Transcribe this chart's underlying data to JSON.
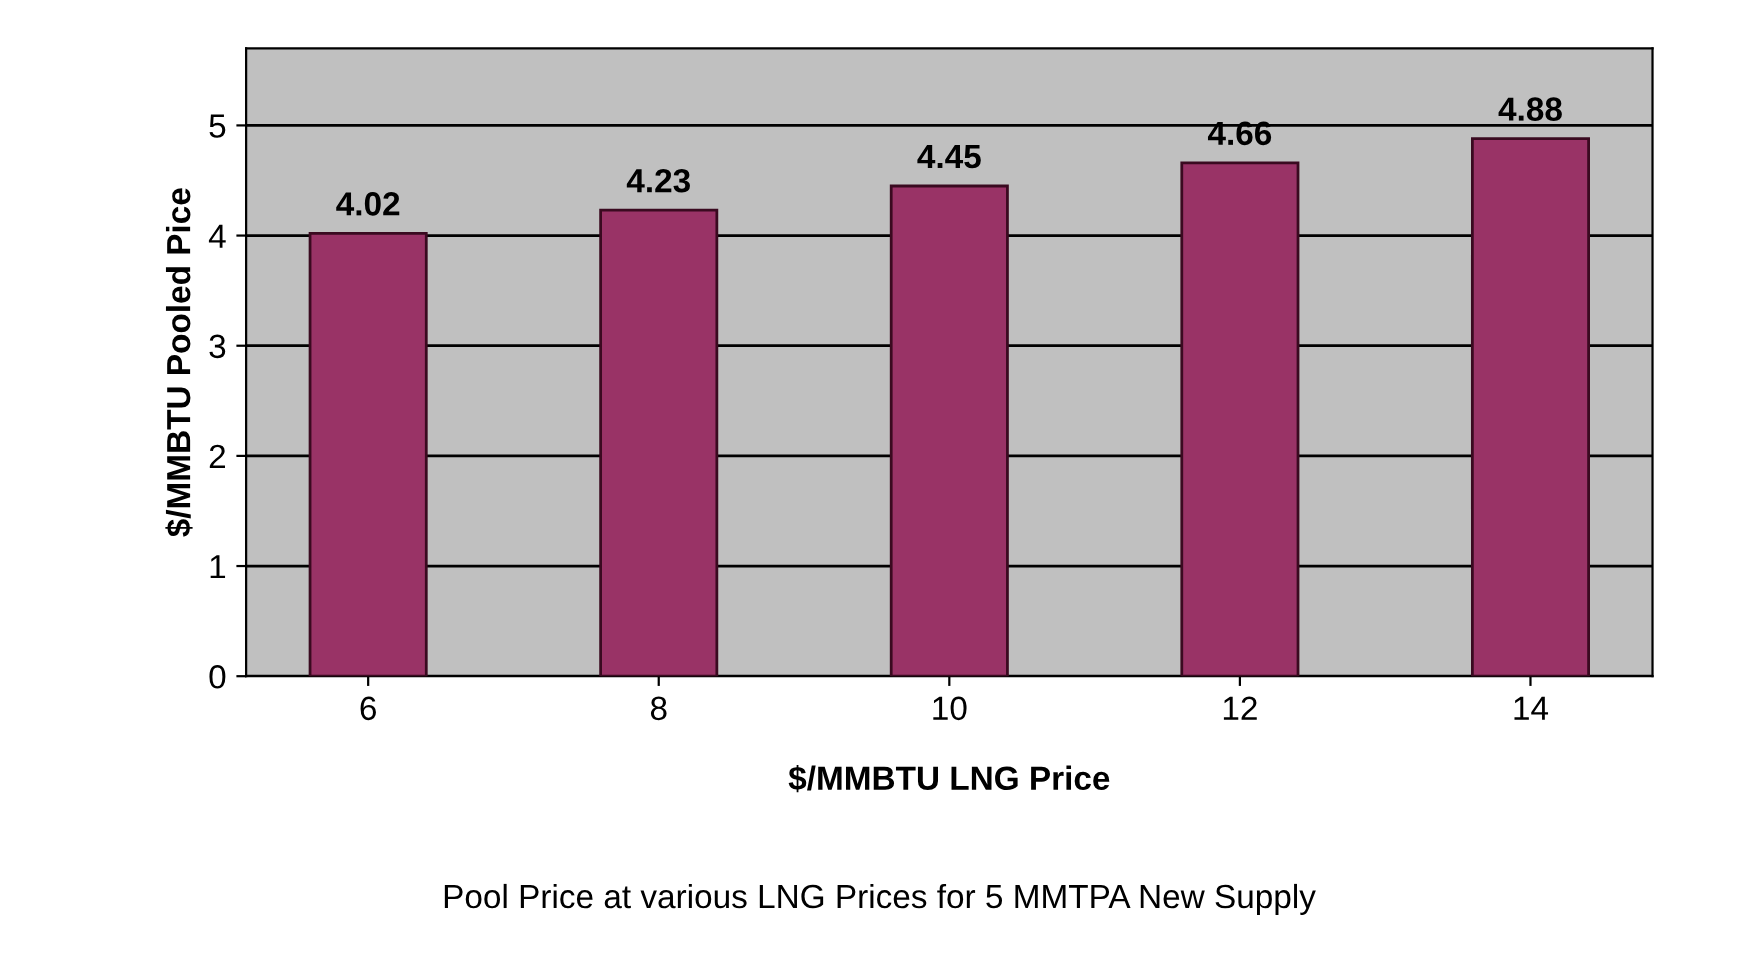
{
  "chart_data": {
    "type": "bar",
    "xlabel": "$/MMBTU LNG Price",
    "ylabel": "$/MMBTU Pooled Pice",
    "annotations": [
      "Pool Price at various LNG Prices for 5 MMTPA New Supply"
    ],
    "categories": [
      "6",
      "8",
      "10",
      "12",
      "14"
    ],
    "values": [
      4.02,
      4.23,
      4.45,
      4.66,
      4.88
    ],
    "color": "#993366",
    "data_labels": true,
    "ylim": [
      0,
      5.7
    ],
    "yticks": [
      0,
      1,
      2,
      3,
      4,
      5
    ],
    "grid": "y",
    "legend": false
  }
}
